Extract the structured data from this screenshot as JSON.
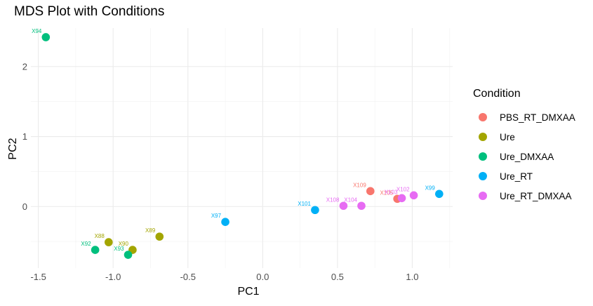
{
  "chart_data": {
    "type": "scatter",
    "title": "MDS Plot with Conditions",
    "xlabel": "PC1",
    "ylabel": "PC2",
    "xlim": [
      -1.55,
      1.27
    ],
    "ylim": [
      -0.88,
      2.55
    ],
    "x_ticks": [
      -1.5,
      -1.0,
      -0.5,
      0.0,
      0.5,
      1.0
    ],
    "x_tick_labels": [
      "-1.5",
      "-1.0",
      "-0.5",
      "0.0",
      "0.5",
      "1.0"
    ],
    "y_ticks": [
      0,
      1,
      2
    ],
    "y_tick_labels": [
      "0",
      "1",
      "2"
    ],
    "grid": true,
    "legend_title": "Condition",
    "legend_position": "right",
    "series": [
      {
        "name": "PBS_RT_DMXAA",
        "color": "#F8766D",
        "points": [
          {
            "label": "X109",
            "x": 0.72,
            "y": 0.22
          },
          {
            "label": "X105",
            "x": 0.9,
            "y": 0.11
          }
        ]
      },
      {
        "name": "Ure",
        "color": "#A3A500",
        "points": [
          {
            "label": "X88",
            "x": -1.03,
            "y": -0.51
          },
          {
            "label": "X89",
            "x": -0.69,
            "y": -0.43
          },
          {
            "label": "X90",
            "x": -0.87,
            "y": -0.62
          }
        ]
      },
      {
        "name": "Ure_DMXAA",
        "color": "#00BF7D",
        "points": [
          {
            "label": "X94",
            "x": -1.45,
            "y": 2.42
          },
          {
            "label": "X92",
            "x": -1.12,
            "y": -0.62
          },
          {
            "label": "X93",
            "x": -0.9,
            "y": -0.69
          }
        ]
      },
      {
        "name": "Ure_RT",
        "color": "#00B0F6",
        "points": [
          {
            "label": "X101",
            "x": 0.35,
            "y": -0.05
          },
          {
            "label": "X97",
            "x": -0.25,
            "y": -0.22
          },
          {
            "label": "X99",
            "x": 1.18,
            "y": 0.18
          }
        ]
      },
      {
        "name": "Ure_RT_DMXAA",
        "color": "#E76BF3",
        "points": [
          {
            "label": "X108",
            "x": 0.54,
            "y": 0.01
          },
          {
            "label": "X104",
            "x": 0.66,
            "y": 0.01
          },
          {
            "label": "X103",
            "x": 0.93,
            "y": 0.12
          },
          {
            "label": "X102",
            "x": 1.01,
            "y": 0.16
          }
        ]
      }
    ]
  }
}
